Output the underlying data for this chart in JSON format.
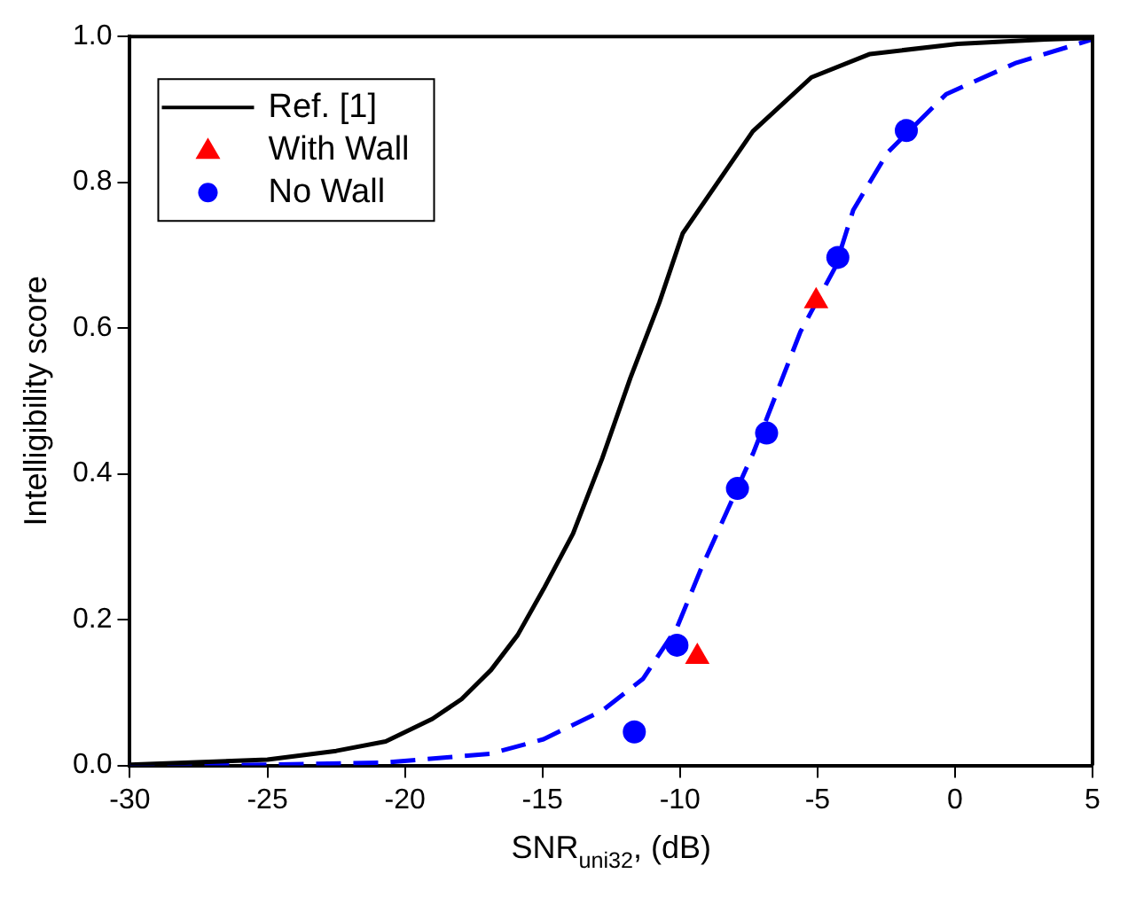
{
  "chart_data": {
    "type": "line",
    "xlabel": "SNR$_{uni32}$, (dB)",
    "ylabel": "Intelligibility score",
    "xlim": [
      -30,
      5
    ],
    "xticks": [
      -30,
      -25,
      -20,
      -15,
      -10,
      -5,
      0,
      5
    ],
    "ylim": [
      0,
      1
    ],
    "yticks": [
      {
        "value": 0,
        "label": "0.0"
      },
      0.2,
      0.4,
      0.6,
      0.8,
      {
        "value": 1,
        "label": "1.0"
      }
    ],
    "grid": false,
    "legend": "top left",
    "series": [
      {
        "name": "Ref. [1]",
        "color": "#000000",
        "line_style": "solid",
        "marker": "none",
        "x": [
          -30,
          -25,
          -22.5,
          -20.7,
          -19,
          -17.94,
          -16.87,
          -15.9,
          -14.96,
          -13.89,
          -12.83,
          -11.8,
          -10.75,
          -9.9,
          -7.35,
          -5.22,
          -3.09,
          0.1,
          3.29,
          5
        ],
        "values": [
          0.001,
          0.008,
          0.02,
          0.033,
          0.064,
          0.091,
          0.131,
          0.179,
          0.242,
          0.318,
          0.421,
          0.532,
          0.635,
          0.73,
          0.87,
          0.944,
          0.976,
          0.99,
          0.996,
          0.998
        ]
      },
      {
        "name": "With Wall",
        "type": "scatter",
        "color": "#ff0000",
        "marker": "triangle",
        "x": [
          -9.37,
          -5.05
        ],
        "values": [
          0.149,
          0.637
        ]
      },
      {
        "name": "No Wall",
        "type": "scatter",
        "color": "#0000ff",
        "marker": "circle",
        "x": [
          -11.66,
          -10.11,
          -7.91,
          -6.85,
          -4.26,
          -1.77
        ],
        "values": [
          0.046,
          0.165,
          0.38,
          0.456,
          0.697,
          0.871
        ]
      },
      {
        "color": "#0000ff",
        "line_style": "dashed",
        "marker": "none",
        "x": [
          -30,
          -25,
          -20.7,
          -16.9,
          -14.96,
          -12.83,
          -11.34,
          -10.1,
          -9.23,
          -7.32,
          -5.62,
          -4.36,
          -3.7,
          -2.45,
          -0.32,
          2.23,
          5
        ],
        "values": [
          0,
          0.001,
          0.004,
          0.016,
          0.036,
          0.075,
          0.119,
          0.19,
          0.27,
          0.43,
          0.595,
          0.683,
          0.762,
          0.841,
          0.921,
          0.964,
          0.996
        ]
      }
    ]
  }
}
